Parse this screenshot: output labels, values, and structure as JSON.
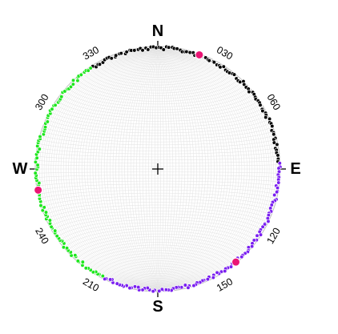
{
  "chart_data": {
    "type": "scatter",
    "projection": "equal-area stereonet (lower hemisphere), graticule 2 degrees",
    "cardinals": [
      {
        "label": "N",
        "azimuth": 0
      },
      {
        "label": "E",
        "azimuth": 90
      },
      {
        "label": "S",
        "azimuth": 180
      },
      {
        "label": "W",
        "azimuth": 270
      }
    ],
    "tick_labels": [
      {
        "label": "030",
        "azimuth": 30
      },
      {
        "label": "060",
        "azimuth": 60
      },
      {
        "label": "120",
        "azimuth": 120
      },
      {
        "label": "150",
        "azimuth": 150
      },
      {
        "label": "210",
        "azimuth": 210
      },
      {
        "label": "240",
        "azimuth": 240
      },
      {
        "label": "300",
        "azimuth": 300
      },
      {
        "label": "330",
        "azimuth": 330
      }
    ],
    "center_marker": "+",
    "colors": {
      "graticule": "#e3e3e3",
      "primitive": "#bfbfbf",
      "background": "#ffffff",
      "halo": "#ffffff"
    },
    "series": [
      {
        "color": "#000000",
        "azimuth_range": [
          327,
          87
        ],
        "plunge_range": [
          0,
          3
        ],
        "count": 95
      },
      {
        "color": "#7a1ff0",
        "azimuth_range": [
          87,
          207
        ],
        "plunge_range": [
          0,
          3
        ],
        "count": 95
      },
      {
        "color": "#1ee61e",
        "azimuth_range": [
          207,
          327
        ],
        "plunge_range": [
          0,
          3
        ],
        "count": 95
      }
    ],
    "highlight_points": [
      {
        "color": "#ea1675",
        "azimuth": 20,
        "plunge": 1
      },
      {
        "color": "#ea1675",
        "azimuth": 140,
        "plunge": 1
      },
      {
        "color": "#ea1675",
        "azimuth": 260,
        "plunge": 1
      }
    ]
  }
}
